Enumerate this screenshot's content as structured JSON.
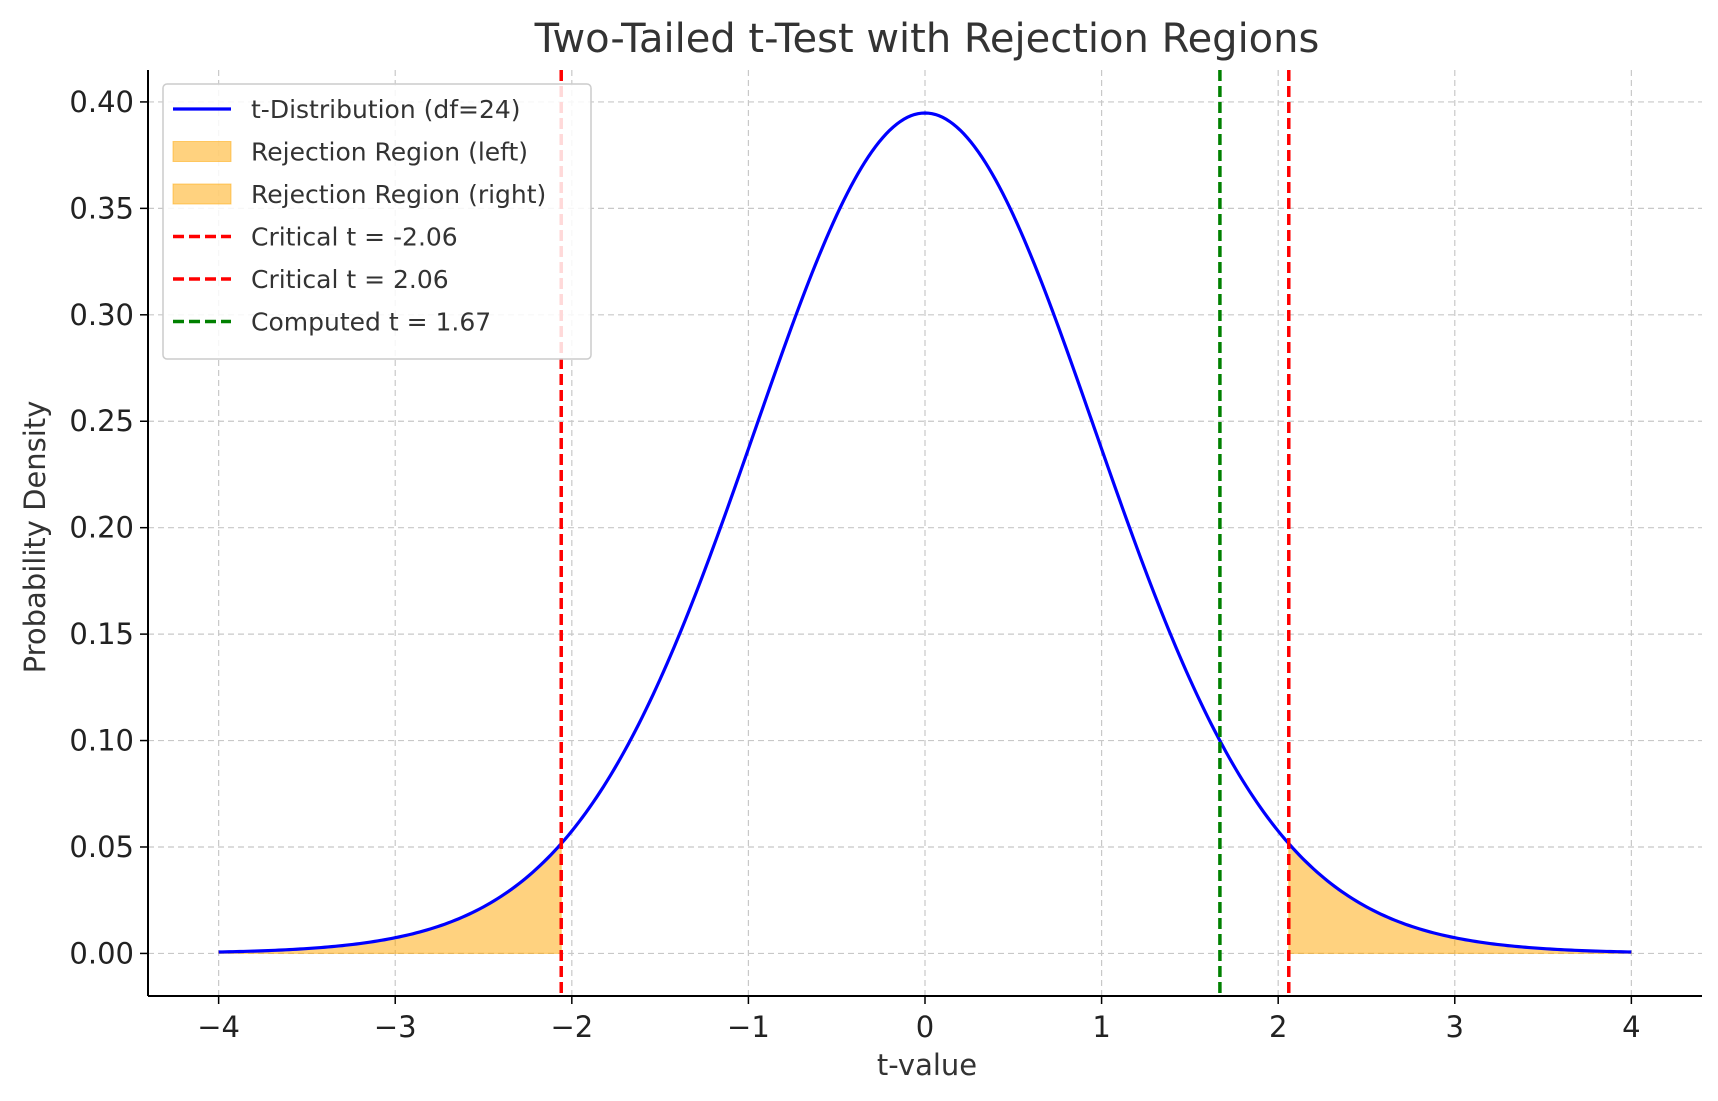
{
  "chart_data": {
    "type": "line",
    "title": "Two-Tailed t-Test with Rejection Regions",
    "xlabel": "t-value",
    "ylabel": "Probability Density",
    "xlim": [
      -4.4,
      4.4
    ],
    "ylim": [
      -0.02,
      0.415
    ],
    "x_ticks": [
      -4,
      -3,
      -2,
      -1,
      0,
      1,
      2,
      3,
      4
    ],
    "x_tick_labels": [
      "−4",
      "−3",
      "−2",
      "−1",
      "0",
      "1",
      "2",
      "3",
      "4"
    ],
    "y_ticks": [
      0.0,
      0.05,
      0.1,
      0.15,
      0.2,
      0.25,
      0.3,
      0.35,
      0.4
    ],
    "y_tick_labels": [
      "0.00",
      "0.05",
      "0.10",
      "0.15",
      "0.20",
      "0.25",
      "0.30",
      "0.35",
      "0.40"
    ],
    "grid": true,
    "legend_position": "top-left",
    "df": 24,
    "curve_x_range": [
      -4,
      4
    ],
    "series": [
      {
        "name": "t-Distribution (df=24)",
        "kind": "line",
        "color": "#0000ff"
      },
      {
        "name": "Rejection Region (left)",
        "kind": "fill",
        "color": "#ffa500",
        "x_from": -4,
        "x_to": -2.06
      },
      {
        "name": "Rejection Region (right)",
        "kind": "fill",
        "color": "#ffa500",
        "x_from": 2.06,
        "x_to": 4
      },
      {
        "name": "Critical t = -2.06",
        "kind": "vline",
        "color": "#ff0000",
        "x": -2.06
      },
      {
        "name": "Critical t = 2.06",
        "kind": "vline",
        "color": "#ff0000",
        "x": 2.06
      },
      {
        "name": "Computed t = 1.67",
        "kind": "vline",
        "color": "#008000",
        "x": 1.67
      }
    ]
  }
}
